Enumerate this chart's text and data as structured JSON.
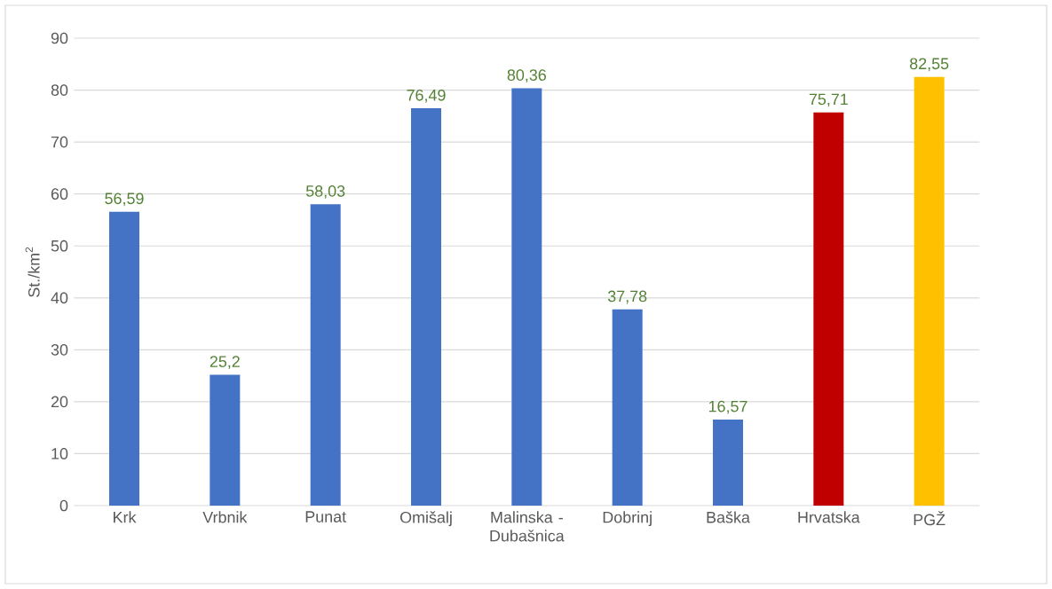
{
  "chart_data": {
    "type": "bar",
    "ylabel": "St./km$^{2}$",
    "categories": [
      "Krk",
      "Vrbnik",
      "Punat",
      "Omišalj",
      "Malinska - Dubašnica",
      "Dobrinj",
      "Baška",
      "Hrvatska",
      "PGŽ"
    ],
    "values": [
      56.59,
      25.2,
      58.03,
      76.49,
      80.36,
      37.78,
      16.57,
      75.71,
      82.55
    ],
    "value_labels": [
      "56,59",
      "25,2",
      "58,03",
      "76,49",
      "80,36",
      "37,78",
      "16,57",
      "75,71",
      "82,55"
    ],
    "colors": [
      "#4472c4",
      "#4472c4",
      "#4472c4",
      "#4472c4",
      "#4472c4",
      "#4472c4",
      "#4472c4",
      "#c00000",
      "#ffc000"
    ],
    "ylim": [
      0,
      90
    ],
    "yticks": [
      0,
      10,
      20,
      30,
      40,
      50,
      60,
      70,
      80,
      90
    ],
    "grid": "y"
  }
}
